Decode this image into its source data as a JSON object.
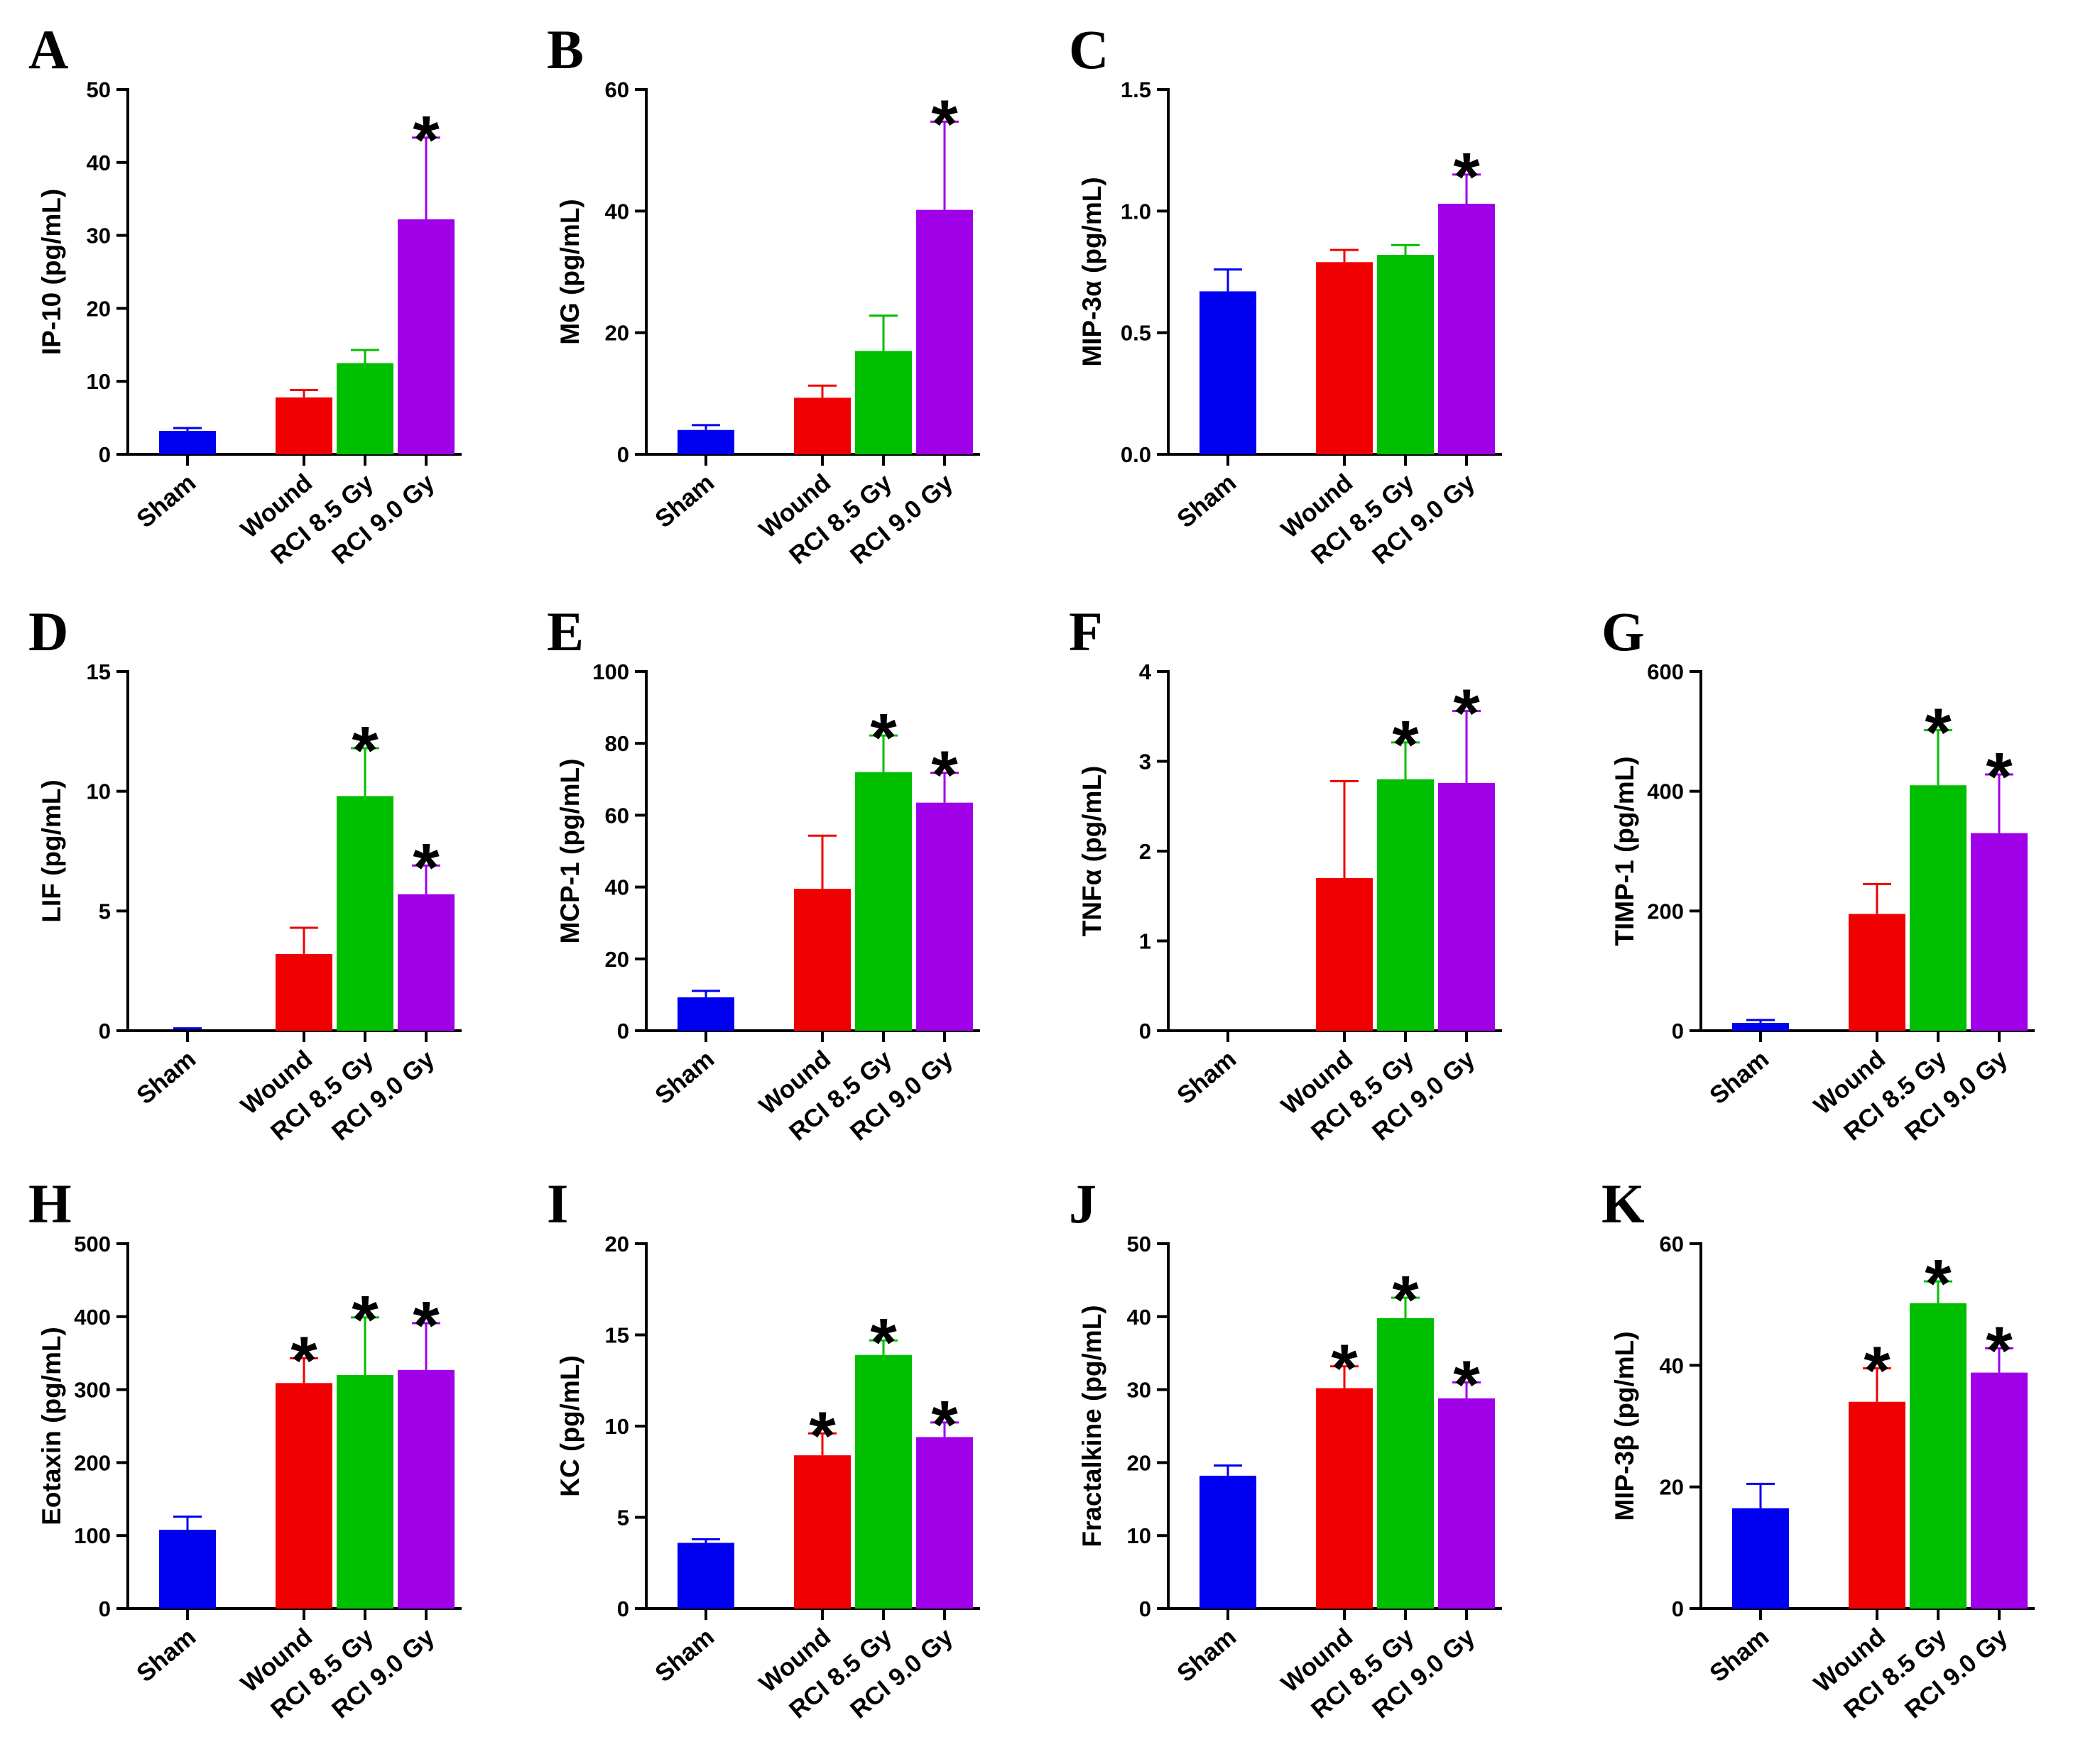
{
  "colors": {
    "Sham": "#0000f0",
    "Wound": "#f00000",
    "RCI 8.5 Gy": "#00bf00",
    "RCI 9.0 Gy": "#a000e8"
  },
  "chart_data": [
    {
      "type": "bar",
      "panel": "A",
      "ylabel": "IP-10 (pg/mL)",
      "ylim": [
        0,
        50
      ],
      "yticks": [
        "0",
        "10",
        "20",
        "30",
        "40",
        "50"
      ],
      "categories": [
        "Sham",
        "Wound",
        "RCI 8.5 Gy",
        "RCI 9.0 Gy"
      ],
      "values": [
        3.2,
        7.8,
        12.5,
        32.2
      ],
      "errors": [
        0.4,
        1.0,
        1.8,
        11.2
      ],
      "significant": [
        "",
        "",
        "",
        "*"
      ]
    },
    {
      "type": "bar",
      "panel": "B",
      "ylabel": "MG (pg/mL)",
      "ylim": [
        0,
        60
      ],
      "yticks": [
        "0",
        "20",
        "40",
        "60"
      ],
      "categories": [
        "Sham",
        "Wound",
        "RCI 8.5 Gy",
        "RCI 9.0 Gy"
      ],
      "values": [
        4.0,
        9.3,
        17.0,
        40.2
      ],
      "errors": [
        0.8,
        2.0,
        5.8,
        14.5
      ],
      "significant": [
        "",
        "",
        "",
        "*"
      ]
    },
    {
      "type": "bar",
      "panel": "C",
      "ylabel": "MIP-3α (pg/mL)",
      "ylim": [
        0,
        1.5
      ],
      "yticks": [
        "0.0",
        "0.5",
        "1.0",
        "1.5"
      ],
      "categories": [
        "Sham",
        "Wound",
        "RCI 8.5 Gy",
        "RCI 9.0 Gy"
      ],
      "values": [
        0.67,
        0.79,
        0.82,
        1.03
      ],
      "errors": [
        0.09,
        0.05,
        0.04,
        0.12
      ],
      "significant": [
        "",
        "",
        "",
        "*"
      ]
    },
    {
      "type": "bar",
      "panel": "D",
      "ylabel": "LIF (pg/mL)",
      "ylim": [
        0,
        15
      ],
      "yticks": [
        "0",
        "5",
        "10",
        "15"
      ],
      "categories": [
        "Sham",
        "Wound",
        "RCI 8.5 Gy",
        "RCI 9.0 Gy"
      ],
      "values": [
        0,
        3.2,
        9.8,
        5.7
      ],
      "errors": [
        0.1,
        1.1,
        2.0,
        1.2
      ],
      "significant": [
        "",
        "",
        "*",
        "*"
      ]
    },
    {
      "type": "bar",
      "panel": "E",
      "ylabel": "MCP-1 (pg/mL)",
      "ylim": [
        0,
        100
      ],
      "yticks": [
        "0",
        "20",
        "40",
        "60",
        "80",
        "100"
      ],
      "categories": [
        "Sham",
        "Wound",
        "RCI 8.5 Gy",
        "RCI 9.0 Gy"
      ],
      "values": [
        9.3,
        39.5,
        72.0,
        63.5
      ],
      "errors": [
        1.8,
        14.8,
        10.2,
        8.3
      ],
      "significant": [
        "",
        "",
        "*",
        "*"
      ]
    },
    {
      "type": "bar",
      "panel": "F",
      "ylabel": "TNFα (pg/mL)",
      "ylim": [
        0,
        4
      ],
      "yticks": [
        "0",
        "1",
        "2",
        "3",
        "4"
      ],
      "categories": [
        "Sham",
        "Wound",
        "RCI 8.5 Gy",
        "RCI 9.0 Gy"
      ],
      "values": [
        0,
        1.7,
        2.8,
        2.76
      ],
      "errors": [
        0,
        1.08,
        0.41,
        0.8
      ],
      "significant": [
        "",
        "",
        "*",
        "*"
      ]
    },
    {
      "type": "bar",
      "panel": "G",
      "ylabel": "TIMP-1 (pg/mL)",
      "ylim": [
        0,
        600
      ],
      "yticks": [
        "0",
        "200",
        "400",
        "600"
      ],
      "categories": [
        "Sham",
        "Wound",
        "RCI 8.5 Gy",
        "RCI 9.0 Gy"
      ],
      "values": [
        13,
        195,
        410,
        330
      ],
      "errors": [
        5,
        50,
        92,
        98
      ],
      "significant": [
        "",
        "",
        "*",
        "*"
      ]
    },
    {
      "type": "bar",
      "panel": "H",
      "ylabel": "Eotaxin (pg/mL)",
      "ylim": [
        0,
        500
      ],
      "yticks": [
        "0",
        "100",
        "200",
        "300",
        "400",
        "500"
      ],
      "categories": [
        "Sham",
        "Wound",
        "RCI 8.5 Gy",
        "RCI 9.0 Gy"
      ],
      "values": [
        108,
        309,
        320,
        327
      ],
      "errors": [
        18,
        34,
        79,
        64
      ],
      "significant": [
        "",
        "*",
        "*",
        "*"
      ]
    },
    {
      "type": "bar",
      "panel": "I",
      "ylabel": "KC (pg/mL)",
      "ylim": [
        0,
        20
      ],
      "yticks": [
        "0",
        "5",
        "10",
        "15",
        "20"
      ],
      "categories": [
        "Sham",
        "Wound",
        "RCI 8.5 Gy",
        "RCI 9.0 Gy"
      ],
      "values": [
        3.6,
        8.4,
        13.9,
        9.4
      ],
      "errors": [
        0.2,
        1.2,
        0.8,
        0.8
      ],
      "significant": [
        "",
        "*",
        "*",
        "*"
      ]
    },
    {
      "type": "bar",
      "panel": "J",
      "ylabel": "Fractalkine (pg/mL)",
      "ylim": [
        0,
        50
      ],
      "yticks": [
        "0",
        "10",
        "20",
        "30",
        "40",
        "50"
      ],
      "categories": [
        "Sham",
        "Wound",
        "RCI 8.5 Gy",
        "RCI 9.0 Gy"
      ],
      "values": [
        18.2,
        30.2,
        39.8,
        28.8
      ],
      "errors": [
        1.4,
        3.0,
        2.8,
        2.2
      ],
      "significant": [
        "",
        "*",
        "*",
        "*"
      ]
    },
    {
      "type": "bar",
      "panel": "K",
      "ylabel": "MIP-3β (pg/mL)",
      "ylim": [
        0,
        60
      ],
      "yticks": [
        "0",
        "20",
        "40",
        "60"
      ],
      "categories": [
        "Sham",
        "Wound",
        "RCI 8.5 Gy",
        "RCI 9.0 Gy"
      ],
      "values": [
        16.5,
        34.0,
        50.2,
        38.8
      ],
      "errors": [
        4.0,
        5.5,
        3.6,
        4.0
      ],
      "significant": [
        "",
        "*",
        "*",
        "*"
      ]
    }
  ]
}
